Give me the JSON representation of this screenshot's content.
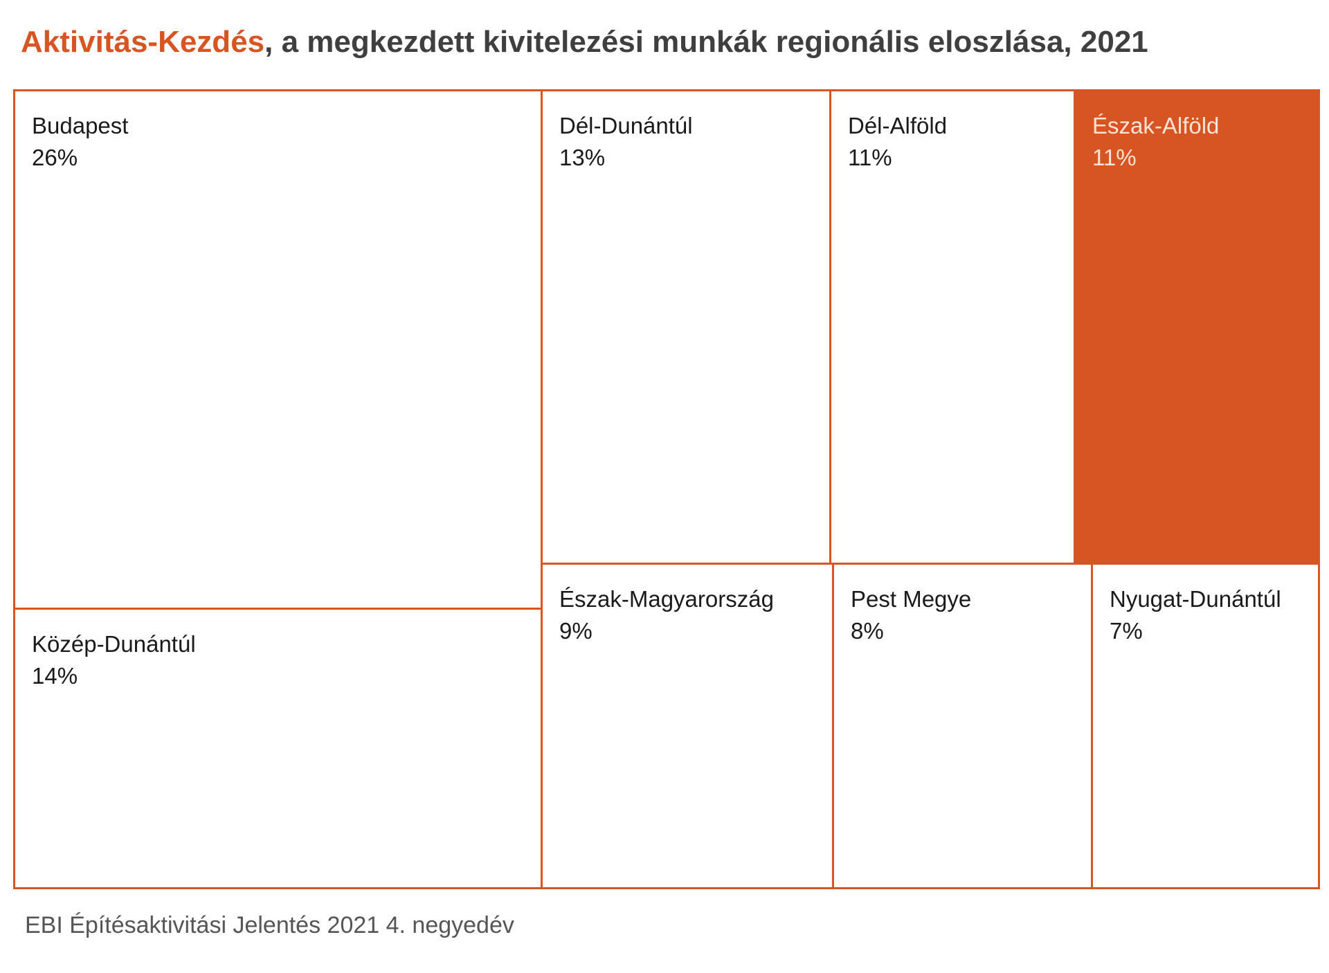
{
  "title": {
    "accent": "Aktivitás-Kezdés",
    "rest": ", a megkezdett kivitelezési munkák regionális eloszlása, 2021"
  },
  "source": "EBI Építésaktivitási Jelentés 2021 4. negyedév",
  "colors": {
    "accent": "#d65522",
    "text": "#3f3f3f",
    "cell_fill": "#ffffff"
  },
  "chart_data": {
    "type": "treemap",
    "title": "Aktivitás-Kezdés, a megkezdett kivitelezési munkák regionális eloszlása, 2021",
    "unit": "%",
    "items": [
      {
        "name": "Budapest",
        "value": 26,
        "label": "26%"
      },
      {
        "name": "Közép-Dunántúl",
        "value": 14,
        "label": "14%"
      },
      {
        "name": "Dél-Dunántúl",
        "value": 13,
        "label": "13%"
      },
      {
        "name": "Dél-Alföld",
        "value": 11,
        "label": "11%"
      },
      {
        "name": "Észak-Alföld",
        "value": 11,
        "label": "11%",
        "highlight": true
      },
      {
        "name": "Észak-Magyarország",
        "value": 9,
        "label": "9%"
      },
      {
        "name": "Pest Megye",
        "value": 8,
        "label": "8%"
      },
      {
        "name": "Nyugat-Dunántúl",
        "value": 7,
        "label": "7%"
      }
    ]
  }
}
